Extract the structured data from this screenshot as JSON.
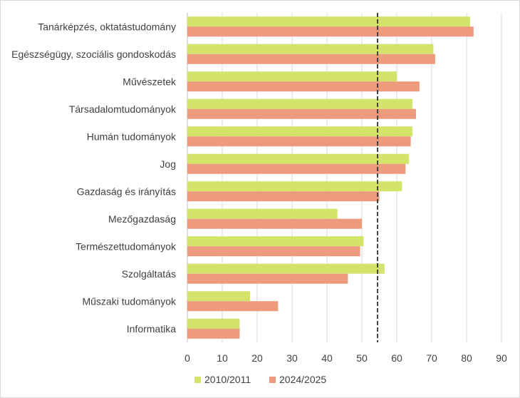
{
  "chart_data": {
    "type": "bar",
    "orientation": "horizontal",
    "title": "",
    "xlabel": "",
    "ylabel": "",
    "categories": [
      "Tanárképzés, oktatástudomány",
      "Egészségügy, szociális gondoskodás",
      "Művészetek",
      "Társadalomtudományok",
      "Humán tudományok",
      "Jog",
      "Gazdaság és irányítás",
      "Mezőgazdaság",
      "Természettudományok",
      "Szolgáltatás",
      "Műszaki tudományok",
      "Informatika"
    ],
    "series": [
      {
        "name": "2010/2011",
        "color": "#d4e46b",
        "values": [
          81,
          70.5,
          60,
          64.5,
          64.5,
          63.5,
          61.5,
          43,
          50.5,
          56.5,
          18,
          15
        ]
      },
      {
        "name": "2024/2025",
        "color": "#ee9a7c",
        "values": [
          82,
          71,
          66.5,
          65.5,
          64,
          62.5,
          55,
          50,
          49.5,
          46,
          26,
          15
        ]
      }
    ],
    "reference_line": {
      "value": 54.5,
      "style": "dashed",
      "color": "#404040"
    },
    "xlim": [
      0,
      90
    ],
    "xticks": [
      "0",
      "10",
      "20",
      "30",
      "40",
      "50",
      "60",
      "70",
      "80",
      "90"
    ],
    "grid": "vertical",
    "legend_position": "bottom"
  }
}
